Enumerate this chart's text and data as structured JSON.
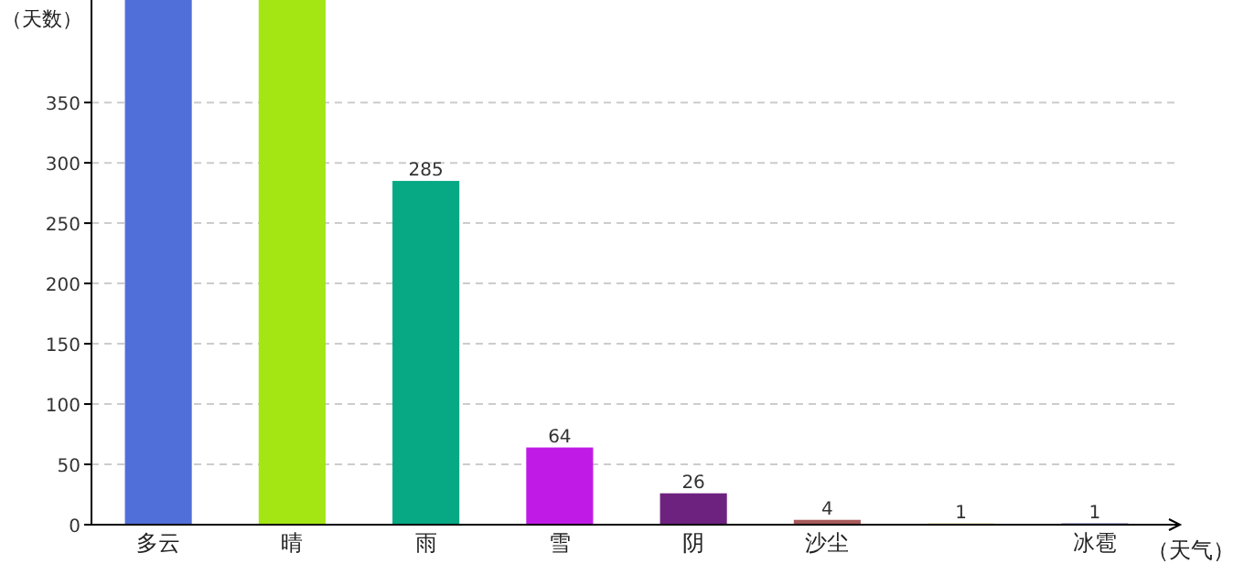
{
  "chart_data": {
    "type": "bar",
    "xlabel": "（天气）",
    "ylabel": "（天数）",
    "categories": [
      "多云",
      "晴",
      "雨",
      "雪",
      "阴",
      "沙尘",
      null,
      "冰雹"
    ],
    "values": [
      435,
      435,
      285,
      64,
      26,
      4,
      1,
      1
    ],
    "value_labels": [
      null,
      null,
      "285",
      "64",
      "26",
      "4",
      "1",
      "1"
    ],
    "colors": [
      "#516fd9",
      "#a4e614",
      "#06a984",
      "#c01be6",
      "#6e2280",
      "#a85a5a",
      "#d8c060",
      "#1a1a8c"
    ],
    "ylim": [
      0,
      435
    ],
    "yticks": [
      0,
      50,
      100,
      150,
      200,
      250,
      300,
      350
    ],
    "grid": "y"
  }
}
